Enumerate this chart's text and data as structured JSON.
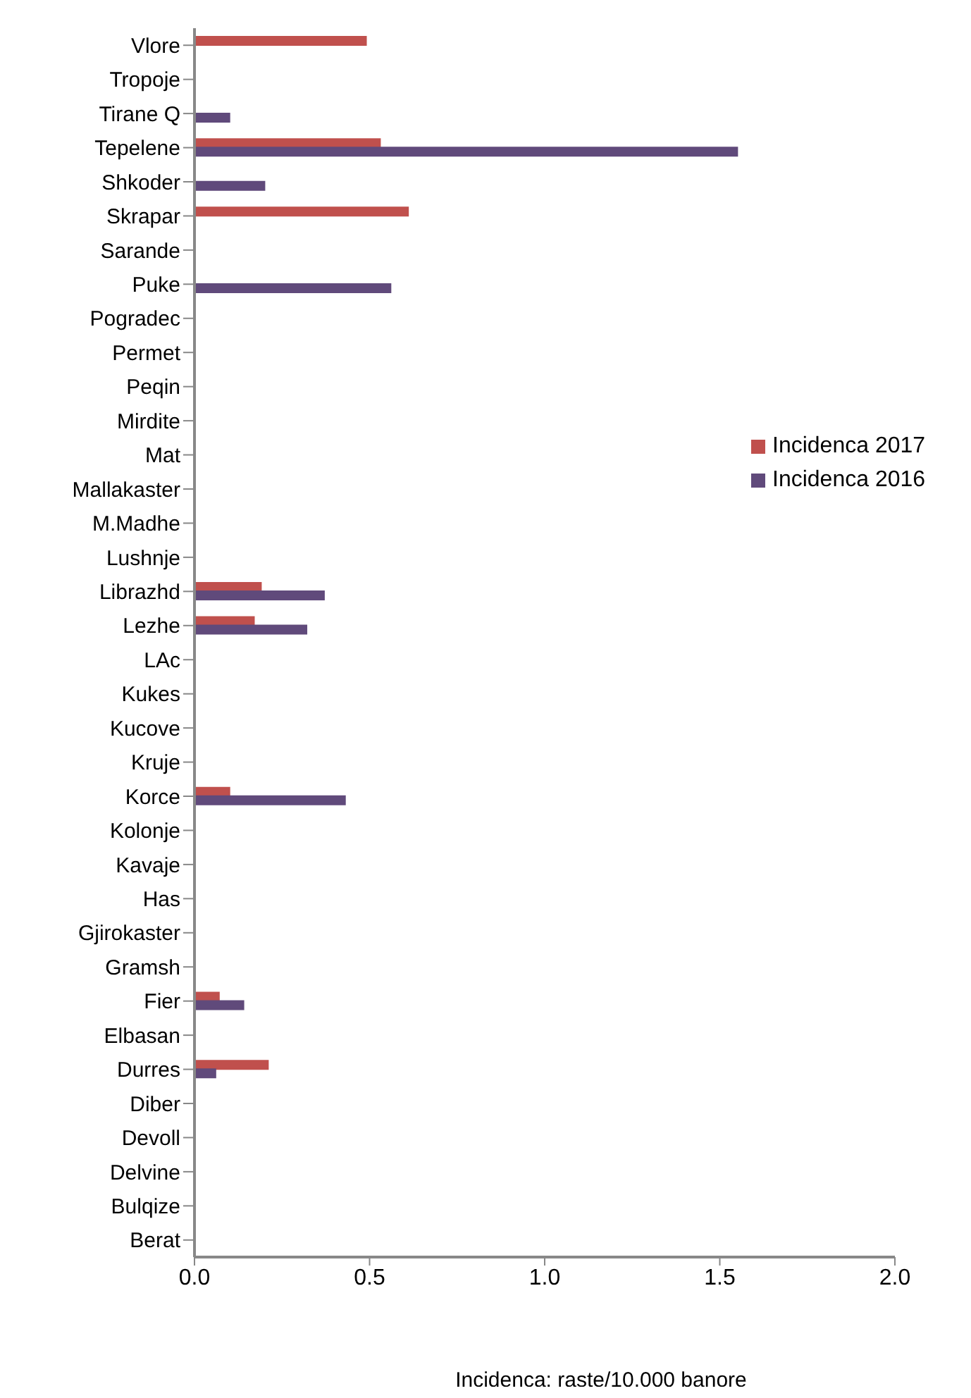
{
  "chart_data": {
    "type": "bar",
    "orientation": "horizontal",
    "xlabel": "Incidenca: raste/10.000 banore",
    "categories": [
      "Vlore",
      "Tropoje",
      "Tirane Q",
      "Tepelene",
      "Shkoder",
      "Skrapar",
      "Sarande",
      "Puke",
      "Pogradec",
      "Permet",
      "Peqin",
      "Mirdite",
      "Mat",
      "Mallakaster",
      "M.Madhe",
      "Lushnje",
      "Librazhd",
      "Lezhe",
      "LAc",
      "Kukes",
      "Kucove",
      "Kruje",
      "Korce",
      "Kolonje",
      "Kavaje",
      "Has",
      "Gjirokaster",
      "Gramsh",
      "Fier",
      "Elbasan",
      "Durres",
      "Diber",
      "Devoll",
      "Delvine",
      "Bulqize",
      "Berat"
    ],
    "series": [
      {
        "name": "Incidenca 2017",
        "color": "#c0504d",
        "values": [
          0.49,
          0,
          0,
          0.53,
          0,
          0.61,
          0,
          0,
          0,
          0,
          0,
          0,
          0,
          0,
          0,
          0,
          0.19,
          0.17,
          0,
          0,
          0,
          0,
          0.1,
          0,
          0,
          0,
          0,
          0,
          0.07,
          0,
          0.21,
          0,
          0,
          0,
          0,
          0
        ]
      },
      {
        "name": "Incidenca 2016",
        "color": "#604a7b",
        "values": [
          0,
          0,
          0.1,
          1.55,
          0.2,
          0,
          0,
          0.56,
          0,
          0,
          0,
          0,
          0,
          0,
          0,
          0,
          0.37,
          0.32,
          0,
          0,
          0,
          0,
          0.43,
          0,
          0,
          0,
          0,
          0,
          0.14,
          0,
          0.06,
          0,
          0,
          0,
          0,
          0
        ]
      }
    ],
    "xlim": [
      0,
      2
    ],
    "xticks": [
      {
        "value": 0,
        "label": "0.0"
      },
      {
        "value": 0.5,
        "label": "0.5"
      },
      {
        "value": 1,
        "label": "1.0"
      },
      {
        "value": 1.5,
        "label": "1.5"
      },
      {
        "value": 2,
        "label": "2.0"
      }
    ],
    "grid": false,
    "legend": "right"
  }
}
